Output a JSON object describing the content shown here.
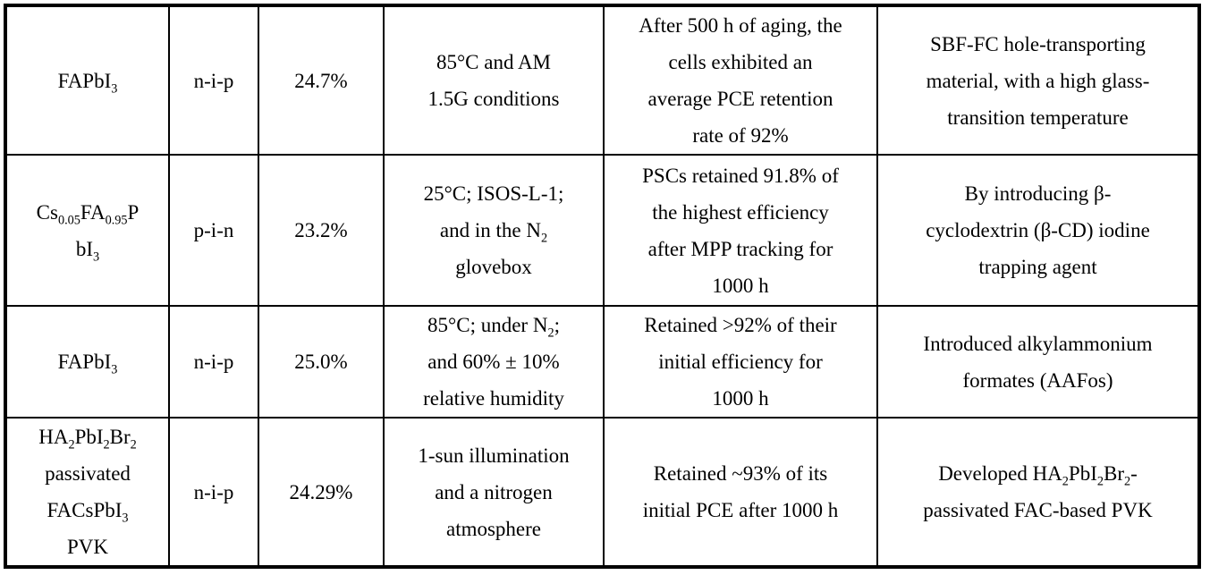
{
  "colors": {
    "border": "#000000",
    "background": "#ffffff",
    "text": "#000000"
  },
  "table": {
    "description": "Perovskite solar cell stability results table (no header row visible)",
    "columns_semantic": [
      "material",
      "device-structure",
      "pce",
      "test-conditions",
      "stability-result",
      "innovation"
    ],
    "rows": [
      {
        "cells": [
          "FAPbI‹3›",
          "n-i-p",
          "24.7%",
          "85°C and AM\n1.5G conditions",
          "After 500 h of aging, the\ncells exhibited an\naverage PCE retention\nrate of 92%",
          "SBF-FC hole-transporting\nmaterial, with a high glass-\ntransition temperature"
        ]
      },
      {
        "cells": [
          "Cs‹0.05›FA‹0.95›P\nbI‹3›",
          "p-i-n",
          "23.2%",
          "25°C; ISOS-L-1;\nand in the N‹2›\nglovebox",
          "PSCs retained 91.8% of\nthe highest efficiency\nafter MPP tracking for\n1000 h",
          "By introducing β-\ncyclodextrin (β-CD) iodine\ntrapping agent"
        ]
      },
      {
        "cells": [
          "FAPbI‹3›",
          "n-i-p",
          "25.0%",
          "85°C; under N‹2›;\nand 60% ± 10%\nrelative humidity",
          "Retained >92% of their\ninitial efficiency for\n1000 h",
          "Introduced alkylammonium\nformates (AAFos)"
        ]
      },
      {
        "cells": [
          "HA‹2›PbI‹2›Br‹2›\npassivated\nFACsPbI‹3›\nPVK",
          "n-i-p",
          "24.29%",
          "1-sun illumination\nand a nitrogen\natmosphere",
          "Retained ~93% of its\ninitial PCE after 1000 h",
          "Developed HA‹2›PbI‹2›Br‹2›-\npassivated FAC-based PVK"
        ]
      }
    ]
  }
}
